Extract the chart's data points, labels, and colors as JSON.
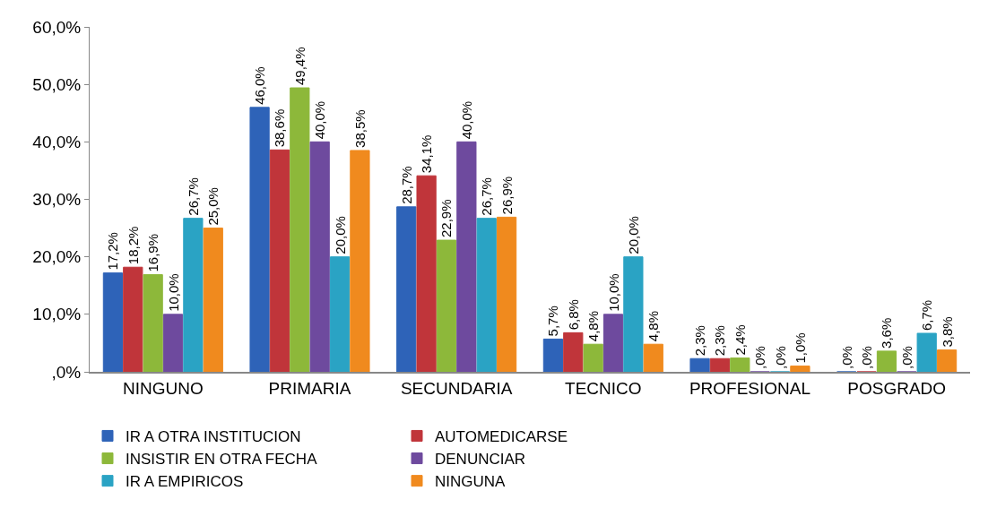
{
  "chart_data": {
    "type": "bar",
    "categories": [
      "NINGUNO",
      "PRIMARIA",
      "SECUNDARIA",
      "TECNICO",
      "PROFESIONAL",
      "POSGRADO"
    ],
    "series": [
      {
        "name": "IR A OTRA INSTITUCION",
        "color": "#2e63b8",
        "values": [
          17.2,
          46.0,
          28.7,
          5.7,
          2.3,
          0
        ],
        "value_labels": [
          "17,2%",
          "46,0%",
          "28,7%",
          "5,7%",
          "2,3%",
          ",0%"
        ]
      },
      {
        "name": "AUTOMEDICARSE",
        "color": "#c0353a",
        "values": [
          18.2,
          38.6,
          34.1,
          6.8,
          2.3,
          0
        ],
        "value_labels": [
          "18,2%",
          "38,6%",
          "34,1%",
          "6,8%",
          "2,3%",
          ",0%"
        ]
      },
      {
        "name": "INSISTIR EN OTRA FECHA",
        "color": "#8db83a",
        "values": [
          16.9,
          49.4,
          22.9,
          4.8,
          2.4,
          3.6
        ],
        "value_labels": [
          "16,9%",
          "49,4%",
          "22,9%",
          "4,8%",
          "2,4%",
          "3,6%"
        ]
      },
      {
        "name": "DENUNCIAR",
        "color": "#6e4a9e",
        "values": [
          10.0,
          40.0,
          40.0,
          10.0,
          0,
          0
        ],
        "value_labels": [
          "10,0%",
          "40,0%",
          "40,0%",
          "10,0%",
          ",0%",
          ",0%"
        ]
      },
      {
        "name": "IR A EMPIRICOS",
        "color": "#2aa3c4",
        "values": [
          26.7,
          20.0,
          26.7,
          20.0,
          0,
          6.7
        ],
        "value_labels": [
          "26,7%",
          "20,0%",
          "26,7%",
          "20,0%",
          ",0%",
          "6,7%"
        ]
      },
      {
        "name": "NINGUNA",
        "color": "#f08a1e",
        "values": [
          25.0,
          38.5,
          26.9,
          4.8,
          1.0,
          3.8
        ],
        "value_labels": [
          "25,0%",
          "38,5%",
          "26,9%",
          "4,8%",
          "1,0%",
          "3,8%"
        ]
      }
    ],
    "ylim": [
      0,
      60
    ],
    "yticks": [
      {
        "value": 0,
        "label": ",0%"
      },
      {
        "value": 10,
        "label": "10,0%"
      },
      {
        "value": 20,
        "label": "20,0%"
      },
      {
        "value": 30,
        "label": "30,0%"
      },
      {
        "value": 40,
        "label": "40,0%"
      },
      {
        "value": 50,
        "label": "50,0%"
      },
      {
        "value": 60,
        "label": "60,0%"
      }
    ],
    "legend": "bottom"
  }
}
